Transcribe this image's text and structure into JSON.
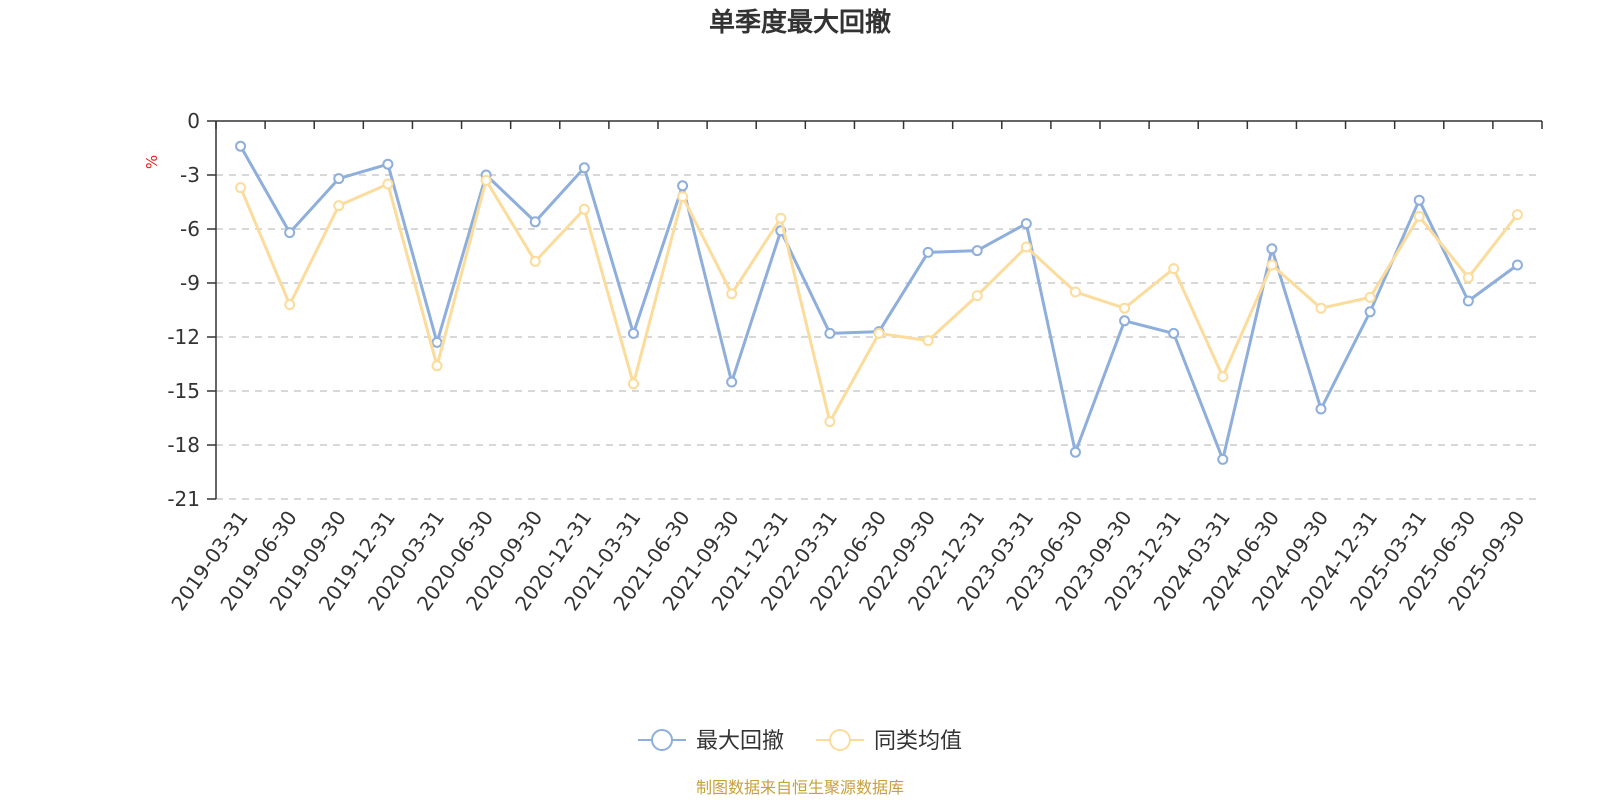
{
  "chart_data": {
    "type": "line",
    "title": "单季度最大回撤",
    "ylabel": "%",
    "xlabel": "",
    "ylim": [
      -21,
      0
    ],
    "yticks": [
      0,
      -3,
      -6,
      -9,
      -12,
      -15,
      -18,
      -21
    ],
    "ytick_labels": [
      "0",
      "-3",
      "-6",
      "-9",
      "-12",
      "-15",
      "-18",
      "-21"
    ],
    "grid": true,
    "legend_position": "bottom-center",
    "categories": [
      "2019-03-31",
      "2019-06-30",
      "2019-09-30",
      "2019-12-31",
      "2020-03-31",
      "2020-06-30",
      "2020-09-30",
      "2020-12-31",
      "2021-03-31",
      "2021-06-30",
      "2021-09-30",
      "2021-12-31",
      "2022-03-31",
      "2022-06-30",
      "2022-09-30",
      "2022-12-31",
      "2023-03-31",
      "2023-06-30",
      "2023-09-30",
      "2023-12-31",
      "2024-03-31",
      "2024-06-30",
      "2024-09-30",
      "2024-12-31",
      "2025-03-31",
      "2025-06-30",
      "2025-09-30"
    ],
    "series": [
      {
        "name": "最大回撤",
        "color": "#8eaedb",
        "values": [
          -1.4,
          -6.2,
          -3.2,
          -2.4,
          -12.3,
          -3.0,
          -5.6,
          -2.6,
          -11.8,
          -3.6,
          -14.5,
          -6.1,
          -11.8,
          -11.7,
          -7.3,
          -7.2,
          -5.7,
          -18.4,
          -11.1,
          -11.8,
          -18.8,
          -7.1,
          -16.0,
          -10.6,
          -4.4,
          -10.0,
          -8.0
        ]
      },
      {
        "name": "同类均值",
        "color": "#fcdc9c",
        "values": [
          -3.7,
          -10.2,
          -4.7,
          -3.5,
          -13.6,
          -3.3,
          -7.8,
          -4.9,
          -14.6,
          -4.2,
          -9.6,
          -5.4,
          -16.7,
          -11.8,
          -12.2,
          -9.7,
          -7.0,
          -9.5,
          -10.4,
          -8.2,
          -14.2,
          -8.0,
          -10.4,
          -9.8,
          -5.3,
          -8.7,
          -5.2
        ]
      }
    ]
  },
  "footer": {
    "source_text": "制图数据来自恒生聚源数据库",
    "source_color": "#c8a03c"
  },
  "colors": {
    "axis": "#333333",
    "grid": "#cccccc",
    "unit_label": "#e52020"
  }
}
